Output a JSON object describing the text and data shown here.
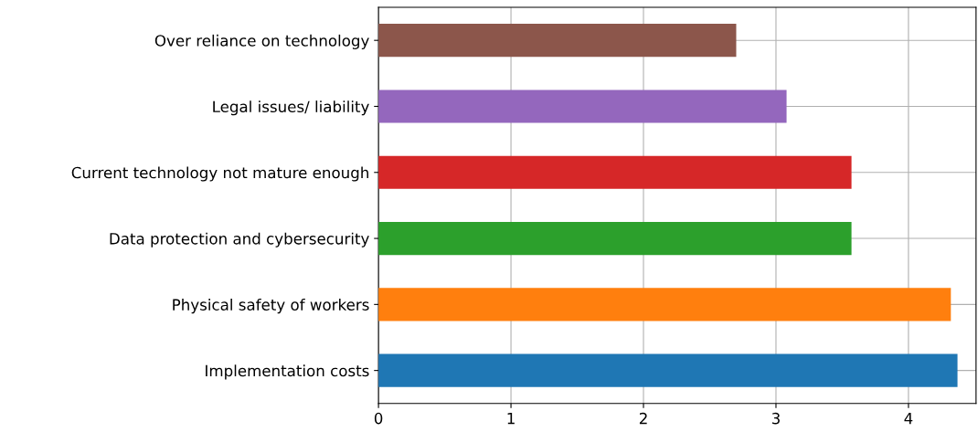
{
  "chart_data": {
    "type": "bar",
    "orientation": "horizontal",
    "categories": [
      "Over reliance on technology",
      "Legal issues/ liability",
      "Current technology not mature enough",
      "Data protection and cybersecurity",
      "Physical safety of workers",
      "Implementation costs"
    ],
    "values": [
      2.7,
      3.08,
      3.57,
      3.57,
      4.32,
      4.37
    ],
    "colors": [
      "#8c564b",
      "#9467bd",
      "#d62728",
      "#2ca02c",
      "#ff7f0e",
      "#1f77b4"
    ],
    "xlim": [
      0,
      4.51
    ],
    "xticks": [
      0,
      1,
      2,
      3,
      4
    ],
    "grid": true,
    "legend": false
  }
}
